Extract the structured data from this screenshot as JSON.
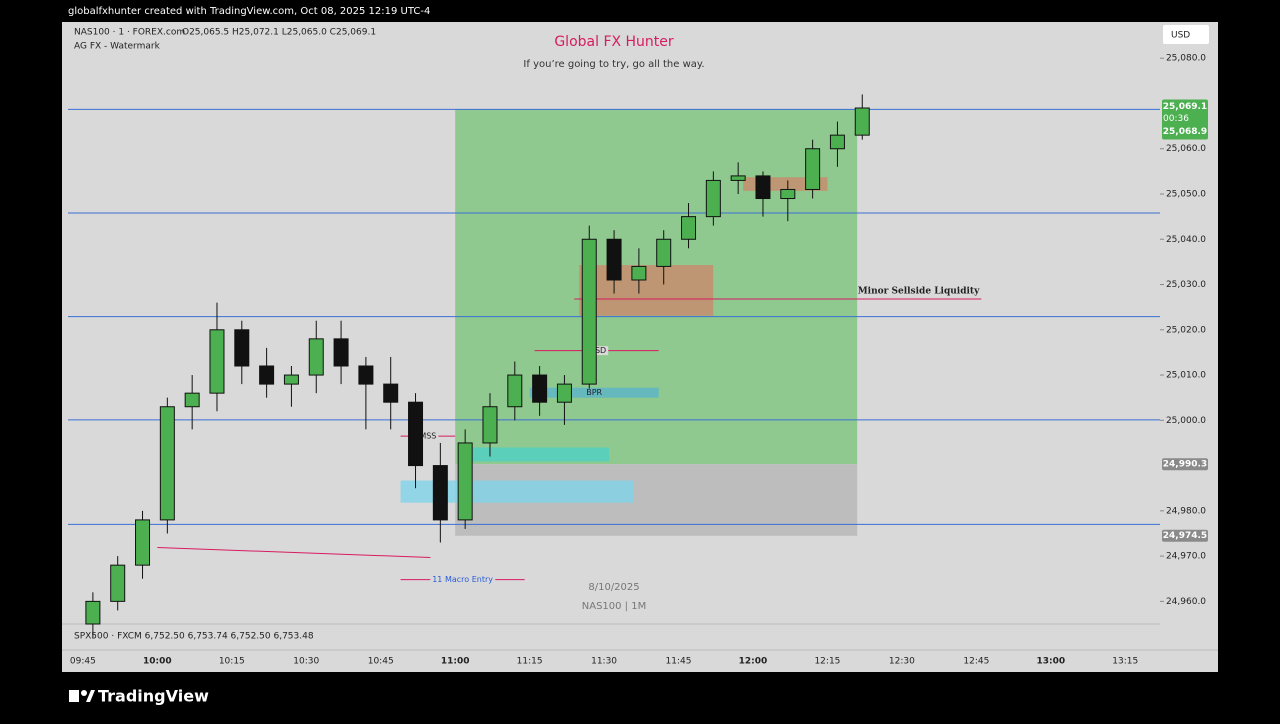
{
  "header": {
    "caption": "globalfxhunter created with TradingView.com, Oct 08, 2025 12:19 UTC-4"
  },
  "legend": {
    "symbol": "NAS100 · 1 · FOREX.com",
    "ohlc": "O25,065.5 H25,072.1 L25,065.0 C25,069.1",
    "indicator": "AG FX - Watermark"
  },
  "watermark": {
    "title": "Global FX Hunter",
    "subtitle": "If you’re going to try, go all the way.",
    "date": "8/10/2025",
    "symbol": "NAS100 | 1M"
  },
  "currency": "USD",
  "sub_legend": "SPX500 · FXCM  6,752.50  6,753.74  6,752.50  6,753.48",
  "brand": "TradingView",
  "chart_data": {
    "type": "candlestick",
    "x": [
      "09:45",
      "09:50",
      "09:55",
      "10:00",
      "10:05",
      "10:10",
      "10:15",
      "10:20",
      "10:25",
      "10:30",
      "10:35",
      "10:40",
      "10:45",
      "10:50",
      "10:55",
      "11:00",
      "11:05",
      "11:10",
      "11:15",
      "11:20",
      "11:25",
      "11:30",
      "11:35",
      "11:40",
      "11:45",
      "11:50",
      "11:55",
      "12:00",
      "12:05",
      "12:10",
      "12:15",
      "12:20"
    ],
    "open": [
      24955,
      24960,
      24968,
      24978,
      25003,
      25006,
      25020,
      25012,
      25008,
      25010,
      25018,
      25012,
      25008,
      25004,
      24990,
      24978,
      24995,
      25003,
      25010,
      25004,
      25008,
      25040,
      25031,
      25034,
      25040,
      25045,
      25053,
      25054,
      25049,
      25051,
      25060,
      25063
    ],
    "high": [
      24962,
      24970,
      24980,
      25005,
      25010,
      25026,
      25022,
      25016,
      25012,
      25022,
      25022,
      25014,
      25014,
      25006,
      24995,
      24998,
      25006,
      25013,
      25012,
      25010,
      25043,
      25042,
      25038,
      25042,
      25048,
      25055,
      25057,
      25055,
      25053,
      25062,
      25066,
      25072
    ],
    "low": [
      24952,
      24958,
      24965,
      24975,
      24998,
      25002,
      25008,
      25005,
      25003,
      25006,
      25008,
      24998,
      24998,
      24985,
      24973,
      24976,
      24992,
      25000,
      25001,
      24999,
      25007,
      25028,
      25028,
      25030,
      25038,
      25043,
      25050,
      25045,
      25044,
      25049,
      25056,
      25062
    ],
    "close": [
      24960,
      24968,
      24978,
      25003,
      25006,
      25020,
      25012,
      25008,
      25010,
      25018,
      25012,
      25008,
      25004,
      24990,
      24978,
      24995,
      25003,
      25010,
      25004,
      25008,
      25040,
      25031,
      25034,
      25040,
      25045,
      25053,
      25054,
      25049,
      25051,
      25060,
      25063,
      25069
    ],
    "up_color": "#4caf50",
    "down_color": "#111111",
    "xlim": [
      "09:42",
      "13:22"
    ],
    "xticks": [
      "09:45",
      "10:00",
      "10:15",
      "10:30",
      "10:45",
      "11:00",
      "11:15",
      "11:30",
      "11:45",
      "12:00",
      "12:15",
      "12:30",
      "12:45",
      "13:00",
      "13:15"
    ],
    "ylim": [
      24955,
      25088
    ],
    "yticks": [
      {
        "value": 24960,
        "label": "24,960.0"
      },
      {
        "value": 24970,
        "label": "24,970.0"
      },
      {
        "value": 24980,
        "label": "24,980.0"
      },
      {
        "value": 25000,
        "label": "25,000.0"
      },
      {
        "value": 25010,
        "label": "25,010.0"
      },
      {
        "value": 25020,
        "label": "25,020.0"
      },
      {
        "value": 25030,
        "label": "25,030.0"
      },
      {
        "value": 25040,
        "label": "25,040.0"
      },
      {
        "value": 25050,
        "label": "25,050.0"
      },
      {
        "value": 25060,
        "label": "25,060.0"
      },
      {
        "value": 25080,
        "label": "25,080.0"
      }
    ],
    "levels": [
      25068.7,
      25045.8,
      25022.9,
      25000.1,
      24977
    ],
    "level_color": "#3b6fd4",
    "position": {
      "start": "11:00",
      "end": "12:21",
      "target": 25068.7,
      "entry": 24990.3,
      "stop": 24974.5
    },
    "current": {
      "value": 25069.1,
      "label": "25,069.1",
      "countdown": "00:36",
      "second": {
        "value": 25068.9,
        "label": "25,068.9"
      }
    },
    "price_labels": [
      {
        "value": 24990.3,
        "label": "24,990.3"
      },
      {
        "value": 24974.5,
        "label": "24,974.5"
      }
    ],
    "zones": [
      {
        "from": "11:25",
        "to": "11:52",
        "low": 25023.1,
        "high": 25034.3,
        "color": "#c98a6b"
      },
      {
        "from": "11:58",
        "to": "12:15",
        "low": 25050.7,
        "high": 25053.7,
        "color": "#c98a6b"
      },
      {
        "from": "11:15",
        "to": "11:41",
        "low": 25005.0,
        "high": 25007.2,
        "color": "#5ab4c8",
        "label": "BPR"
      },
      {
        "from": "11:03",
        "to": "11:31",
        "low": 24990.9,
        "high": 24994.0,
        "color": "#4fd1c5"
      },
      {
        "from": "10:49",
        "to": "11:36",
        "low": 24981.8,
        "high": 24986.7,
        "color": "#7fd3ea"
      }
    ],
    "annotations": [
      {
        "text": "Minor Sellside Liquidity",
        "price": 25026.8,
        "from": "11:24",
        "to": "12:46",
        "color": "#d81b60"
      },
      {
        "text": "CISD",
        "price": 25015.4,
        "from": "11:16",
        "to": "11:41",
        "color": "#d81b60"
      },
      {
        "text": "MSS",
        "price": 24996.5,
        "from": "10:49",
        "to": "11:00",
        "color": "#d81b60"
      },
      {
        "text": "11 Macro Entry",
        "price": 24964.8,
        "from": "10:49",
        "to": "11:14",
        "color": "#d81b60"
      }
    ],
    "trendline": {
      "from": "10:00",
      "from_price": 24971.9,
      "to": "10:55",
      "to_price": 24969.7,
      "color": "#d81b60"
    }
  }
}
